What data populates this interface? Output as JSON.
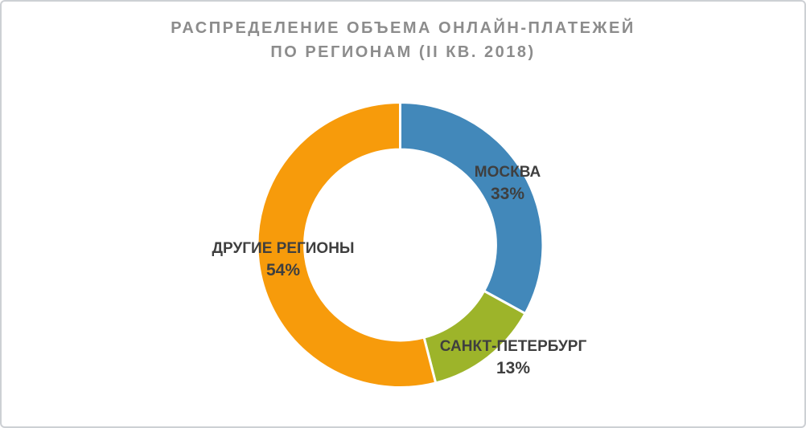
{
  "frame": {
    "background_color": "#ffffff",
    "border_color": "#cdd0d4"
  },
  "title": {
    "line1": "РАСПРЕДЕЛЕНИЕ ОБЪЕМА ОНЛАЙН-ПЛАТЕЖЕЙ",
    "line2": "ПО РЕГИОНАМ (II КВ. 2018)",
    "color": "#8c8c8c"
  },
  "chart_data": {
    "type": "pie",
    "subtype": "donut",
    "title": "РАСПРЕДЕЛЕНИЕ ОБЪЕМА ОНЛАЙН-ПЛАТЕЖЕЙ ПО РЕГИОНАМ (II КВ. 2018)",
    "unit": "%",
    "total": 100,
    "direction": "clockwise",
    "start_angle_deg": 0,
    "inner_radius_ratio": 0.67,
    "gap_color": "#ffffff",
    "legend_position": "none",
    "labels_on_chart": true,
    "label_text_color": "#3f3f3f",
    "series": [
      {
        "name": "МОСКВА",
        "value": 33,
        "value_label": "33%",
        "color": "#4288ba"
      },
      {
        "name": "САНКТ-ПЕТЕРБУРГ",
        "value": 13,
        "value_label": "13%",
        "color": "#9db42a"
      },
      {
        "name": "ДРУГИЕ РЕГИОНЫ",
        "value": 54,
        "value_label": "54%",
        "color": "#f79b0b"
      }
    ]
  }
}
